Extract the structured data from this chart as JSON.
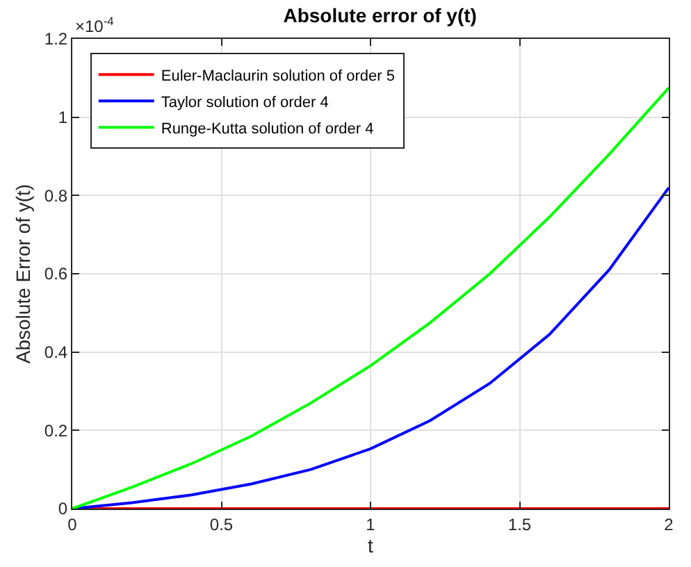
{
  "chart_data": {
    "type": "line",
    "title": "Absolute error of y(t)",
    "xlabel": "t",
    "ylabel": "Absolute Error of y(t)",
    "x": [
      0,
      0.2,
      0.4,
      0.6,
      0.8,
      1.0,
      1.2,
      1.4,
      1.6,
      1.8,
      2.0
    ],
    "series": [
      {
        "name": "Euler-Maclaurin solution of order 5",
        "color": "#ff0000",
        "values": [
          0,
          0,
          0,
          0,
          0,
          0,
          0,
          0,
          0,
          0,
          0
        ]
      },
      {
        "name": "Taylor solution of order 4",
        "color": "#0000ff",
        "values": [
          0,
          0.015,
          0.035,
          0.063,
          0.1,
          0.153,
          0.225,
          0.32,
          0.445,
          0.61,
          0.82
        ]
      },
      {
        "name": "Runge-Kutta solution of order 4",
        "color": "#00ff00",
        "values": [
          0,
          0.055,
          0.115,
          0.185,
          0.27,
          0.365,
          0.475,
          0.6,
          0.745,
          0.905,
          1.075
        ]
      }
    ],
    "xlim": [
      0,
      2
    ],
    "xticks": [
      0,
      0.5,
      1,
      1.5,
      2
    ],
    "ylim": [
      0,
      1.2
    ],
    "yticks": [
      0,
      0.2,
      0.4,
      0.6,
      0.8,
      1,
      1.2
    ],
    "annotations": [
      "×10$^{-4}$"
    ],
    "grid": true,
    "legend": "top left",
    "marker": "none",
    "line_style": "solid"
  }
}
